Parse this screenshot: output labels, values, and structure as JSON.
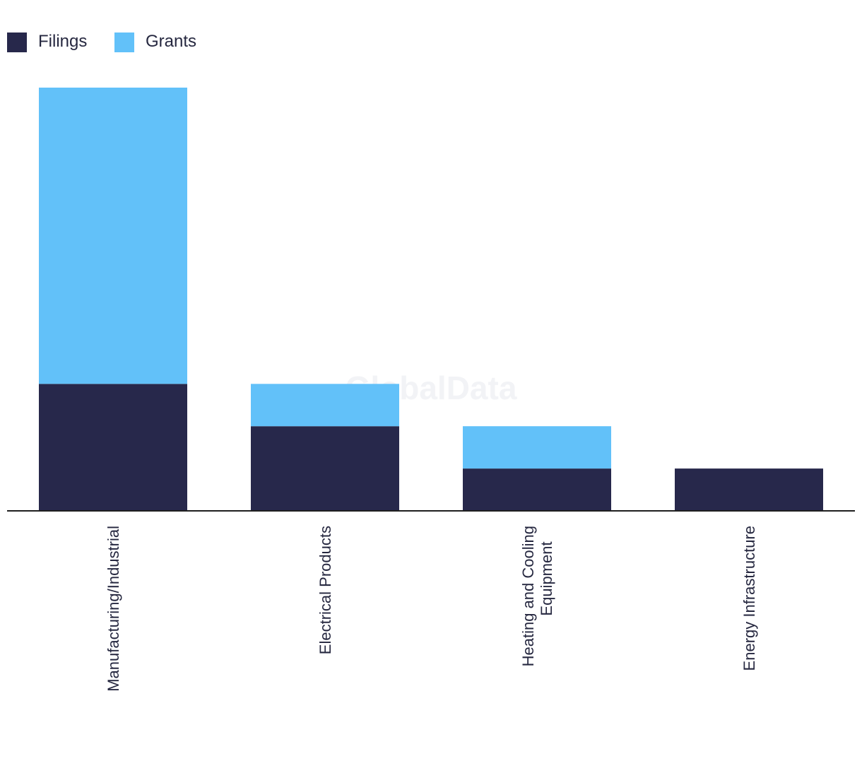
{
  "colors": {
    "filings": "#27284b",
    "grants": "#62c1f9",
    "axis": "#1f1f1f",
    "text": "#262840"
  },
  "legend": {
    "items": [
      {
        "label": "Filings",
        "color": "#27284b"
      },
      {
        "label": "Grants",
        "color": "#62c1f9"
      }
    ]
  },
  "watermark": "GlobalData",
  "chart_data": {
    "type": "bar",
    "stacked": true,
    "categories": [
      "Manufacturing/Industrial",
      "Electrical Products",
      "Heating and Cooling Equipment",
      "Energy Infrastructure"
    ],
    "category_label_lines": [
      [
        "Manufacturing/Industrial"
      ],
      [
        "Electrical Products"
      ],
      [
        "Heating and Cooling",
        "Equipment"
      ],
      [
        "Energy Infrastructure"
      ]
    ],
    "series": [
      {
        "name": "Filings",
        "values": [
          3,
          2,
          1,
          1
        ]
      },
      {
        "name": "Grants",
        "values": [
          7,
          1,
          1,
          0
        ]
      }
    ],
    "ylim": [
      0,
      10
    ],
    "xlabel": "",
    "ylabel": "",
    "grid": false,
    "legend_position": "top-left"
  }
}
